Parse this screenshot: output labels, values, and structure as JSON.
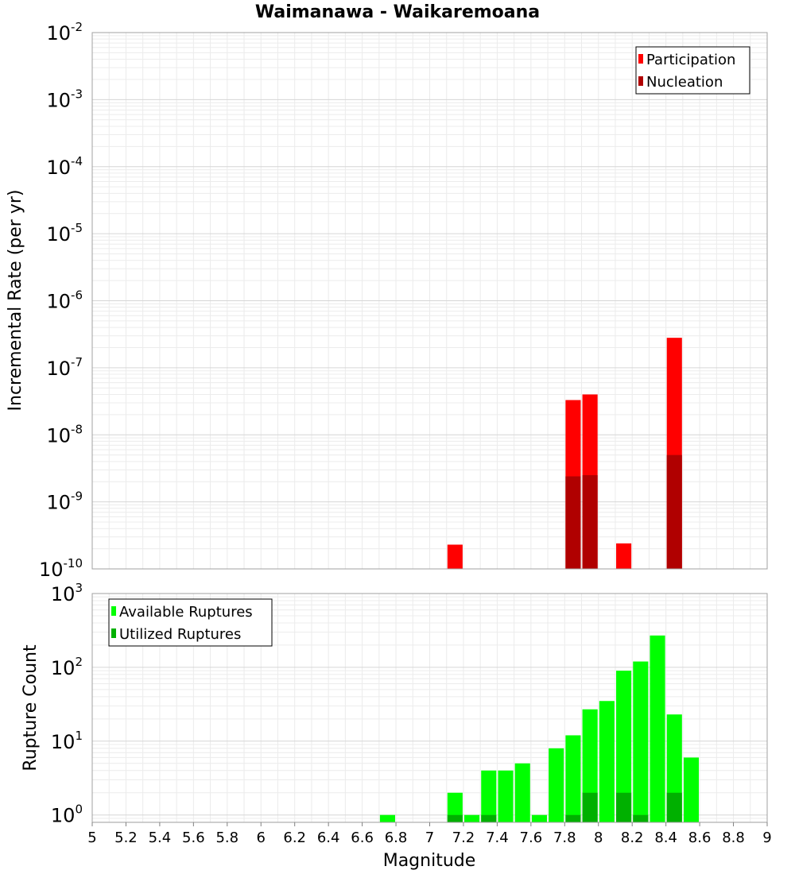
{
  "chart_data": {
    "title": "Waimanawa - Waikaremoana",
    "xlabel": "Magnitude",
    "xlim": [
      5,
      9
    ],
    "xticks": [
      "5",
      "5.2",
      "5.4",
      "5.6",
      "5.8",
      "6",
      "6.2",
      "6.4",
      "6.6",
      "6.8",
      "7",
      "7.2",
      "7.4",
      "7.6",
      "7.8",
      "8",
      "8.2",
      "8.4",
      "8.6",
      "8.8",
      "9"
    ],
    "bin_width": 0.1,
    "panels": [
      {
        "type": "bar",
        "ylabel": "Incremental Rate (per yr)",
        "yscale": "log",
        "ylim_exp": [
          -10,
          -2
        ],
        "ytick_base": "10",
        "yticks_exp": [
          "-2",
          "-3",
          "-4",
          "-5",
          "-6",
          "-7",
          "-8",
          "-9",
          "-10"
        ],
        "grid": true,
        "legend_position": "top-right",
        "series": [
          {
            "name": "Participation",
            "color": "#ff0000",
            "points": [
              {
                "x": 7.15,
                "y": 2.3e-10
              },
              {
                "x": 7.85,
                "y": 3.3e-08
              },
              {
                "x": 7.95,
                "y": 4e-08
              },
              {
                "x": 8.15,
                "y": 2.4e-10
              },
              {
                "x": 8.45,
                "y": 2.8e-07
              }
            ]
          },
          {
            "name": "Nucleation",
            "color": "#b00000",
            "points": [
              {
                "x": 7.85,
                "y": 2.4e-09
              },
              {
                "x": 7.95,
                "y": 2.5e-09
              },
              {
                "x": 8.45,
                "y": 5e-09
              }
            ]
          }
        ]
      },
      {
        "type": "bar",
        "ylabel": "Rupture Count",
        "yscale": "log",
        "ylim_exp": [
          -0.1,
          3
        ],
        "ytick_base": "10",
        "yticks_exp": [
          "3",
          "2",
          "1",
          "0"
        ],
        "grid": true,
        "legend_position": "top-left",
        "series": [
          {
            "name": "Available Ruptures",
            "color": "#00ff00",
            "points": [
              {
                "x": 6.75,
                "y": 1
              },
              {
                "x": 7.15,
                "y": 2
              },
              {
                "x": 7.25,
                "y": 1
              },
              {
                "x": 7.35,
                "y": 4
              },
              {
                "x": 7.45,
                "y": 4
              },
              {
                "x": 7.55,
                "y": 5
              },
              {
                "x": 7.65,
                "y": 1
              },
              {
                "x": 7.75,
                "y": 8
              },
              {
                "x": 7.85,
                "y": 12
              },
              {
                "x": 7.95,
                "y": 27
              },
              {
                "x": 8.05,
                "y": 35
              },
              {
                "x": 8.15,
                "y": 90
              },
              {
                "x": 8.25,
                "y": 120
              },
              {
                "x": 8.35,
                "y": 270
              },
              {
                "x": 8.45,
                "y": 23
              },
              {
                "x": 8.55,
                "y": 6
              }
            ]
          },
          {
            "name": "Utilized Ruptures",
            "color": "#00b000",
            "points": [
              {
                "x": 7.15,
                "y": 1
              },
              {
                "x": 7.35,
                "y": 1
              },
              {
                "x": 7.85,
                "y": 1
              },
              {
                "x": 7.95,
                "y": 2
              },
              {
                "x": 8.15,
                "y": 2
              },
              {
                "x": 8.25,
                "y": 1
              },
              {
                "x": 8.45,
                "y": 2
              }
            ]
          }
        ]
      }
    ]
  }
}
